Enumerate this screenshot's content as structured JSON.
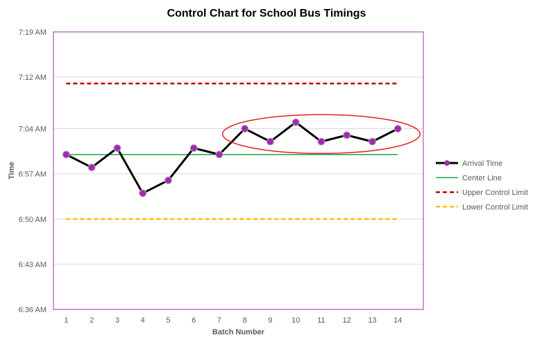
{
  "chart_data": {
    "type": "line",
    "title": "Control Chart for School Bus Timings",
    "xlabel": "Batch Number",
    "ylabel": "Time",
    "x": [
      1,
      2,
      3,
      4,
      5,
      6,
      7,
      8,
      9,
      10,
      11,
      12,
      13,
      14
    ],
    "y_ticks": [
      "6:36 AM",
      "6:43 AM",
      "6:50 AM",
      "6:57 AM",
      "7:04 AM",
      "7:12 AM",
      "7:19 AM"
    ],
    "ylim": [
      "6:36 AM",
      "7:19 AM"
    ],
    "grid": true,
    "legend_position": "right",
    "series": [
      {
        "name": "Arrival Time",
        "color": "#000000",
        "marker_color": "#9b2fa8",
        "values": [
          "7:00 AM",
          "6:58 AM",
          "7:01 AM",
          "6:54 AM",
          "6:56 AM",
          "7:01 AM",
          "7:00 AM",
          "7:04 AM",
          "7:02 AM",
          "7:05 AM",
          "7:02 AM",
          "7:03 AM",
          "7:02 AM",
          "7:04 AM"
        ]
      },
      {
        "name": "Center Line",
        "color": "#1fa24a",
        "style": "solid",
        "value": "7:00 AM"
      },
      {
        "name": "Upper Control Limit",
        "color": "#c00000",
        "style": "dashed",
        "value": "7:11 AM"
      },
      {
        "name": "Lower Control Limit",
        "color": "#ffc000",
        "style": "dashed",
        "value": "6:50 AM"
      }
    ],
    "annotations": [
      {
        "type": "ellipse",
        "color": "#e02020",
        "around_x": [
          8,
          14
        ],
        "note": "highlighted run of points"
      }
    ],
    "plot_border_color": "#9b2fa8"
  }
}
